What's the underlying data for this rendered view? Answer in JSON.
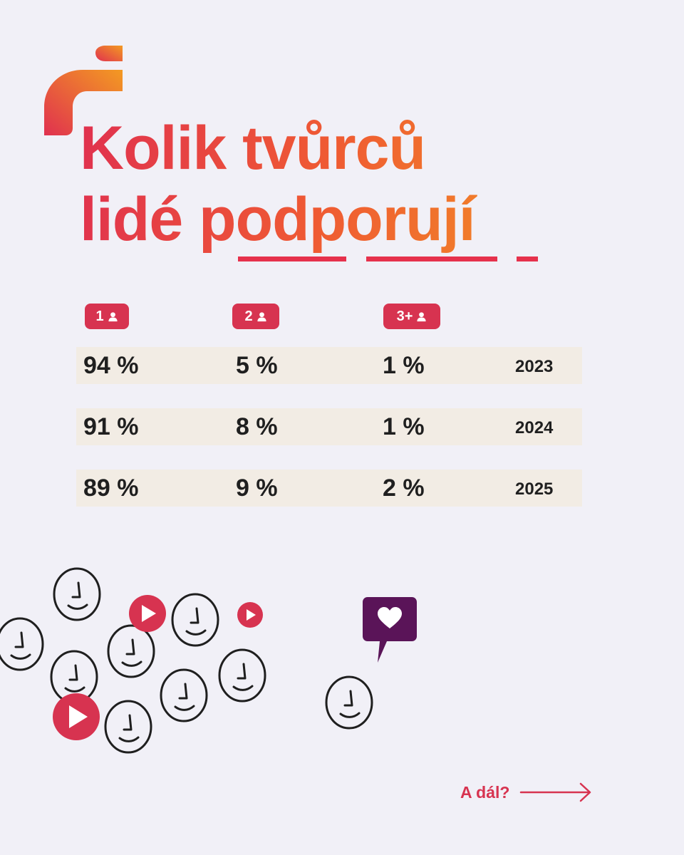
{
  "title": {
    "line1": "Kolik tvůrců",
    "line2_plain": "lidé ",
    "line2_highlight": "podporují"
  },
  "columns": [
    {
      "label": "1",
      "icon": "person-icon"
    },
    {
      "label": "2",
      "icon": "person-icon"
    },
    {
      "label": "3+",
      "icon": "person-icon"
    }
  ],
  "rows": [
    {
      "values": [
        "94 %",
        "5 %",
        "1 %"
      ],
      "year": "2023"
    },
    {
      "values": [
        "91 %",
        "8 %",
        "1 %"
      ],
      "year": "2024"
    },
    {
      "values": [
        "89 %",
        "9 %",
        "2 %"
      ],
      "year": "2025"
    }
  ],
  "next_link": {
    "label": "A dál?",
    "icon": "arrow-right-icon"
  },
  "colors": {
    "background": "#f1f0f7",
    "accent_red": "#d73350",
    "gradient_start": "#e0314f",
    "gradient_end": "#f39a22",
    "row_background": "#f2ece4",
    "heart_bubble": "#5a1458"
  }
}
